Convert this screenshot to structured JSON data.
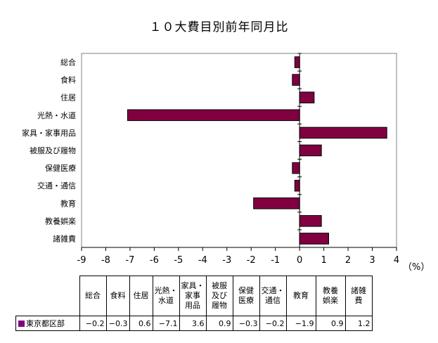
{
  "chart_data": {
    "type": "bar",
    "orientation": "horizontal",
    "title": "１０大費目別前年同月比",
    "unit": "（%）",
    "categories": [
      "総合",
      "食料",
      "住居",
      "光熱・水道",
      "家具・家事用品",
      "被服及び履物",
      "保健医療",
      "交通・通信",
      "教育",
      "教養娯楽",
      "諸雑費"
    ],
    "table_headers": [
      "総合",
      "食料",
      "住居",
      "光熱・\n水道",
      "家具・\n家事\n用品",
      "被服\n及び\n履物",
      "保健\n医療",
      "交通・\n通信",
      "教育",
      "教養\n娯楽",
      "諸雑\n費"
    ],
    "series": [
      {
        "name": "東京都区部",
        "values": [
          -0.2,
          -0.3,
          0.6,
          -7.1,
          3.6,
          0.9,
          -0.3,
          -0.2,
          -1.9,
          0.9,
          1.2
        ]
      }
    ],
    "value_labels": [
      "−0.2",
      "−0.3",
      "0.6",
      "−7.1",
      "3.6",
      "0.9",
      "−0.3",
      "−0.2",
      "−1.9",
      "0.9",
      "1.2"
    ],
    "xlim": [
      -9,
      4
    ],
    "xticks": [
      -9,
      -8,
      -7,
      -6,
      -5,
      -4,
      -3,
      -2,
      -1,
      0,
      1,
      2,
      3,
      4
    ],
    "bar_color": "#800040",
    "legend_color": "#800080"
  }
}
